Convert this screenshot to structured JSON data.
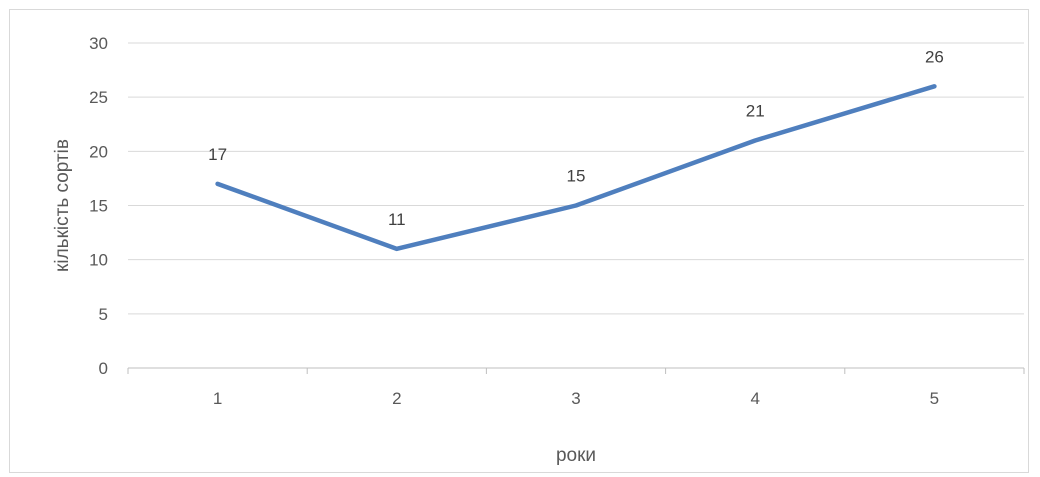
{
  "chart_data": {
    "type": "line",
    "title": "",
    "xlabel": "роки",
    "ylabel": "кількість сортів",
    "categories": [
      "1",
      "2",
      "3",
      "4",
      "5"
    ],
    "series": [
      {
        "values": [
          17,
          11,
          15,
          21,
          26
        ],
        "color": "#4f7fbe"
      }
    ],
    "data_labels": [
      "17",
      "11",
      "15",
      "21",
      "26"
    ],
    "yticks": [
      0,
      5,
      10,
      15,
      20,
      25,
      30
    ],
    "ylim": [
      0,
      30
    ],
    "grid": true,
    "legend": "none",
    "colors": {
      "grid": "#d9d9d9",
      "axis": "#bfbfbf",
      "text": "#595959"
    }
  }
}
